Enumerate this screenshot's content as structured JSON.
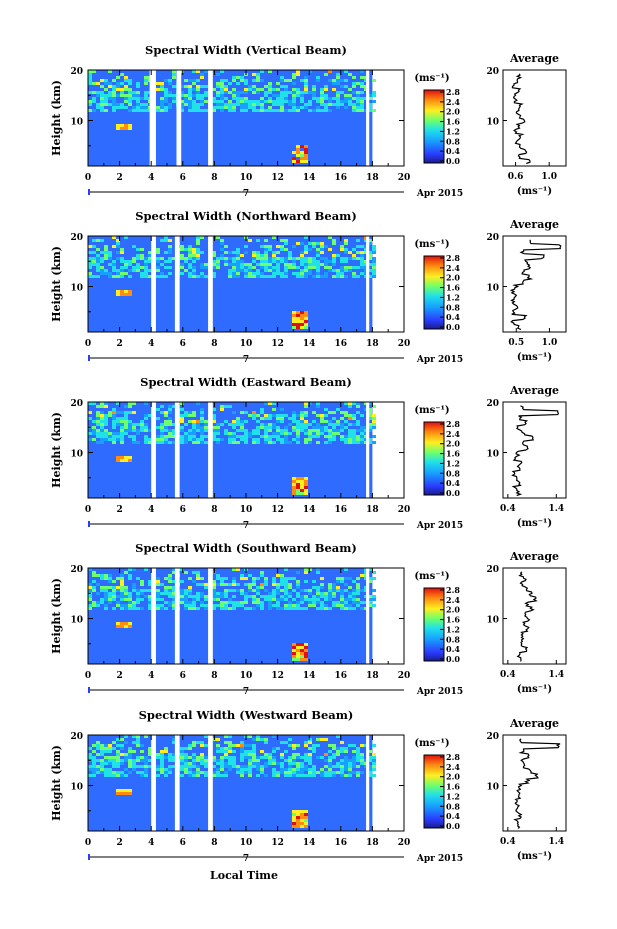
{
  "figure": {
    "xaxis_label": "Local Time",
    "date_label": "Apr 2015",
    "date_day": "7",
    "average_title": "Average",
    "colorbar_unit": "(ms⁻¹)",
    "average_unit": "(ms⁻¹)",
    "height_label": "Height (km)"
  },
  "chart_data": [
    {
      "type": "heatmap",
      "title": "Spectral Width (Vertical Beam)",
      "xlabel": "Local Time",
      "ylabel": "Height (km)",
      "xlim": [
        0,
        20
      ],
      "ylim": [
        1,
        20
      ],
      "xticks": [
        "0",
        "2",
        "4",
        "6",
        "8",
        "10",
        "12",
        "14",
        "16",
        "18",
        "20"
      ],
      "yticks": [
        "10",
        "20"
      ],
      "data_gaps_hours": [
        [
          3.9,
          4.3
        ],
        [
          5.6,
          5.9
        ],
        [
          7.6,
          7.9
        ],
        [
          17.6,
          17.8
        ]
      ],
      "feature": {
        "time_h": 13.3,
        "height_km": [
          2.0,
          5.5
        ],
        "peak_value": 2.8
      },
      "colorbar": {
        "ticks": [
          "0.0",
          "0.4",
          "0.8",
          "1.2",
          "1.6",
          "2.0",
          "2.4",
          "2.8"
        ],
        "range": [
          0,
          2.8
        ]
      },
      "average_profile": {
        "xticks": [
          "0.6",
          "1.0"
        ],
        "xlim": [
          0.45,
          1.2
        ],
        "heights_km": [
          2,
          3,
          4,
          5,
          6,
          7,
          8,
          9,
          10,
          11,
          12,
          13,
          14,
          15,
          16,
          17,
          18,
          19
        ],
        "values": [
          0.75,
          0.65,
          0.72,
          0.66,
          0.62,
          0.66,
          0.6,
          0.64,
          0.7,
          0.64,
          0.62,
          0.66,
          0.6,
          0.58,
          0.64,
          0.56,
          0.62,
          0.64
        ]
      }
    },
    {
      "type": "heatmap",
      "title": "Spectral Width (Northward Beam)",
      "xlabel": "Local Time",
      "ylabel": "Height (km)",
      "xlim": [
        0,
        20
      ],
      "ylim": [
        1,
        20
      ],
      "xticks": [
        "0",
        "2",
        "4",
        "6",
        "8",
        "10",
        "12",
        "14",
        "16",
        "18",
        "20"
      ],
      "yticks": [
        "10",
        "20"
      ],
      "data_gaps_hours": [
        [
          4.0,
          4.3
        ],
        [
          5.5,
          5.8
        ],
        [
          7.6,
          7.9
        ],
        [
          17.6,
          17.8
        ]
      ],
      "feature": {
        "time_h": 13.3,
        "height_km": [
          2.0,
          5.5
        ],
        "peak_value": 2.8
      },
      "colorbar": {
        "ticks": [
          "0.0",
          "0.4",
          "0.8",
          "1.2",
          "1.6",
          "2.0",
          "2.4",
          "2.8"
        ],
        "range": [
          0,
          2.8
        ]
      },
      "average_profile": {
        "xticks": [
          "0.5",
          "1.0"
        ],
        "xlim": [
          0.3,
          1.25
        ],
        "heights_km": [
          2,
          3,
          4,
          5,
          6,
          7,
          8,
          9,
          10,
          11,
          12,
          13,
          14,
          15,
          16,
          17,
          18,
          19
        ],
        "values": [
          0.55,
          0.45,
          0.62,
          0.45,
          0.5,
          0.45,
          0.48,
          0.45,
          0.5,
          0.62,
          0.7,
          0.6,
          0.7,
          0.66,
          0.9,
          0.6,
          1.15,
          0.72
        ]
      }
    },
    {
      "type": "heatmap",
      "title": "Spectral Width (Eastward Beam)",
      "xlabel": "Local Time",
      "ylabel": "Height (km)",
      "xlim": [
        0,
        20
      ],
      "ylim": [
        1,
        20
      ],
      "xticks": [
        "0",
        "2",
        "4",
        "6",
        "8",
        "10",
        "12",
        "14",
        "16",
        "18",
        "20"
      ],
      "yticks": [
        "10",
        "20"
      ],
      "data_gaps_hours": [
        [
          4.0,
          4.3
        ],
        [
          5.5,
          5.8
        ],
        [
          7.6,
          7.9
        ],
        [
          17.6,
          17.8
        ]
      ],
      "feature": {
        "time_h": 13.3,
        "height_km": [
          2.0,
          5.5
        ],
        "peak_value": 2.8
      },
      "colorbar": {
        "ticks": [
          "0.0",
          "0.4",
          "0.8",
          "1.2",
          "1.6",
          "2.0",
          "2.4",
          "2.8"
        ],
        "range": [
          0,
          2.8
        ]
      },
      "average_profile": {
        "xticks": [
          "0.4",
          "1.4"
        ],
        "xlim": [
          0.3,
          1.6
        ],
        "heights_km": [
          2,
          3,
          4,
          5,
          6,
          7,
          8,
          9,
          10,
          11,
          12,
          13,
          14,
          15,
          16,
          17,
          18,
          19
        ],
        "values": [
          0.62,
          0.55,
          0.66,
          0.6,
          0.52,
          0.62,
          0.66,
          0.55,
          0.6,
          0.8,
          0.7,
          0.9,
          0.72,
          0.62,
          0.75,
          0.66,
          1.45,
          0.7
        ]
      }
    },
    {
      "type": "heatmap",
      "title": "Spectral Width (Southward Beam)",
      "xlabel": "Local Time",
      "ylabel": "Height (km)",
      "xlim": [
        0,
        20
      ],
      "ylim": [
        1,
        20
      ],
      "xticks": [
        "0",
        "2",
        "4",
        "6",
        "8",
        "10",
        "12",
        "14",
        "16",
        "18",
        "20"
      ],
      "yticks": [
        "10",
        "20"
      ],
      "data_gaps_hours": [
        [
          4.0,
          4.3
        ],
        [
          5.5,
          5.8
        ],
        [
          7.6,
          7.9
        ],
        [
          17.6,
          17.8
        ]
      ],
      "feature": {
        "time_h": 13.3,
        "height_km": [
          2.0,
          5.5
        ],
        "peak_value": 2.8
      },
      "colorbar": {
        "ticks": [
          "0.0",
          "0.4",
          "0.8",
          "1.2",
          "1.6",
          "2.0",
          "2.4",
          "2.8"
        ],
        "range": [
          0,
          2.8
        ]
      },
      "average_profile": {
        "xticks": [
          "0.4",
          "1.4"
        ],
        "xlim": [
          0.3,
          1.6
        ],
        "heights_km": [
          2,
          3,
          4,
          5,
          6,
          7,
          8,
          9,
          10,
          11,
          12,
          13,
          14,
          15,
          16,
          17,
          18,
          19
        ],
        "values": [
          0.7,
          0.62,
          0.78,
          0.66,
          0.72,
          0.68,
          0.8,
          0.74,
          0.82,
          0.76,
          0.9,
          0.8,
          0.96,
          0.86,
          0.78,
          0.7,
          0.74,
          0.66
        ]
      }
    },
    {
      "type": "heatmap",
      "title": "Spectral Width (Westward Beam)",
      "xlabel": "Local Time",
      "ylabel": "Height (km)",
      "xlim": [
        0,
        20
      ],
      "ylim": [
        1,
        20
      ],
      "xticks": [
        "0",
        "2",
        "4",
        "6",
        "8",
        "10",
        "12",
        "14",
        "16",
        "18",
        "20"
      ],
      "yticks": [
        "10",
        "20"
      ],
      "data_gaps_hours": [
        [
          4.0,
          4.3
        ],
        [
          5.5,
          5.8
        ],
        [
          7.6,
          7.9
        ],
        [
          17.6,
          17.8
        ]
      ],
      "feature": {
        "time_h": 13.3,
        "height_km": [
          2.0,
          5.5
        ],
        "peak_value": 2.8
      },
      "colorbar": {
        "ticks": [
          "0.0",
          "0.4",
          "0.8",
          "1.2",
          "1.6",
          "2.0",
          "2.4",
          "2.8"
        ],
        "range": [
          0,
          2.8
        ]
      },
      "average_profile": {
        "xticks": [
          "0.4",
          "1.4"
        ],
        "xlim": [
          0.3,
          1.6
        ],
        "heights_km": [
          2,
          3,
          4,
          5,
          6,
          7,
          8,
          9,
          10,
          11,
          12,
          13,
          14,
          15,
          16,
          17,
          18,
          19
        ],
        "values": [
          0.62,
          0.58,
          0.66,
          0.6,
          0.62,
          0.58,
          0.64,
          0.62,
          0.66,
          0.8,
          1.0,
          0.85,
          0.75,
          0.7,
          0.8,
          0.7,
          1.45,
          0.68
        ]
      }
    }
  ]
}
